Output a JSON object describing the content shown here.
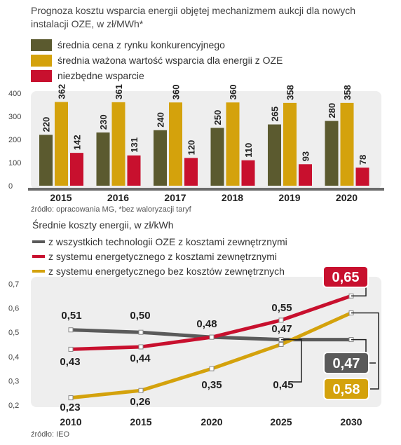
{
  "chart1": {
    "title": "Prognoza kosztu wsparcia energii objętej mechanizmem aukcji dla nowych instalacji OZE, w zł/MWh*",
    "source": "źródło: opracowania MG, *bez waloryzacji taryf"
  },
  "chart2": {
    "title": "Średnie koszty energii, w zł/kWh",
    "source": "źródło: IEO",
    "end_labels": [
      "0,65",
      "0,47",
      "0,58"
    ]
  },
  "colors": {
    "olive": "#5b5a2f",
    "gold": "#d4a20c",
    "red": "#c8102e",
    "gray": "#5a5a5a",
    "panel": "#eeeeee"
  },
  "chart_data": [
    {
      "type": "bar",
      "title": "Prognoza kosztu wsparcia energii objętej mechanizmem aukcji dla nowych instalacji OZE, w zł/MWh*",
      "categories": [
        "2015",
        "2016",
        "2017",
        "2018",
        "2019",
        "2020"
      ],
      "series": [
        {
          "name": "średnia cena z rynku konkurencyjnego",
          "color": "#5b5a2f",
          "values": [
            220,
            230,
            240,
            250,
            265,
            280
          ]
        },
        {
          "name": "średnia ważona wartość wsparcia dla energii z OZE",
          "color": "#d4a20c",
          "values": [
            362,
            361,
            360,
            360,
            358,
            358
          ]
        },
        {
          "name": "niezbędne wsparcie",
          "color": "#c8102e",
          "values": [
            142,
            131,
            120,
            110,
            93,
            78
          ]
        }
      ],
      "yticks": [
        "400",
        "300",
        "200",
        "100",
        "0"
      ],
      "ylim": [
        0,
        400
      ],
      "grid": false,
      "legend": "top-left"
    },
    {
      "type": "line",
      "title": "Średnie koszty energii, w zł/kWh",
      "x": [
        "2010",
        "2015",
        "2020",
        "2025",
        "2030"
      ],
      "series": [
        {
          "name": "z wszystkich technologii OZE z kosztami zewnętrznymi",
          "color": "#5a5a5a",
          "values": [
            0.51,
            0.5,
            0.48,
            0.47,
            0.47
          ],
          "labels": [
            "0,51",
            "0,50",
            "0,48",
            "0,47",
            "0,47"
          ]
        },
        {
          "name": "z systemu energetycznego z kosztami zewnętrznymi",
          "color": "#c8102e",
          "values": [
            0.43,
            0.44,
            0.48,
            0.55,
            0.65
          ],
          "labels": [
            "0,43",
            "0,44",
            "",
            "0,55",
            "0,65"
          ]
        },
        {
          "name": "z systemu energetycznego bez kosztów zewnętrznych",
          "color": "#d4a20c",
          "values": [
            0.23,
            0.26,
            0.35,
            0.45,
            0.58
          ],
          "labels": [
            "0,23",
            "0,26",
            "0,35",
            "0,45",
            "0,58"
          ]
        }
      ],
      "yticks": [
        "0,7",
        "0,6",
        "0,5",
        "0,4",
        "0,3",
        "0,2"
      ],
      "ylim": [
        0.2,
        0.7
      ],
      "grid": false,
      "legend": "top-left"
    }
  ]
}
